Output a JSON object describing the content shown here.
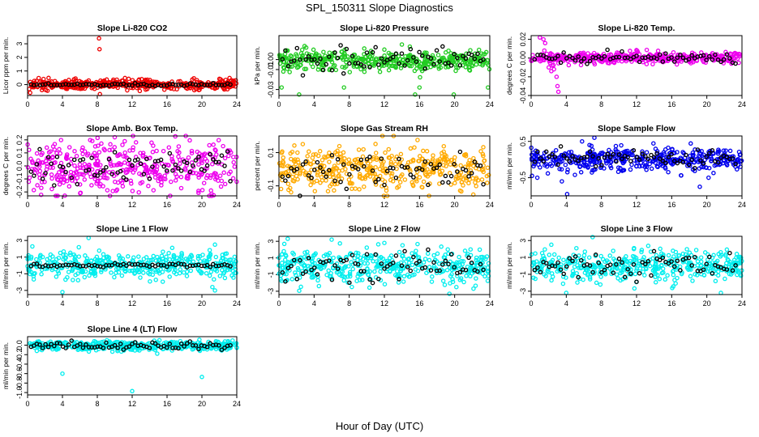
{
  "figure": {
    "title": "SPL_150311  Slope Diagnostics",
    "xlabel": "Hour of Day (UTC)",
    "colors": {
      "reference": "#000000"
    }
  },
  "chart_data": [
    {
      "type": "scatter",
      "title": "Slope Li-820 CO2",
      "ylabel": "Licor ppm per min.",
      "xlim": [
        0,
        24
      ],
      "xticks": [
        0,
        4,
        8,
        12,
        16,
        20,
        24
      ],
      "ylim": [
        -0.8,
        3.6
      ],
      "yticks": [
        {
          "v": 0,
          "t": "0"
        },
        {
          "v": 1,
          "t": "1"
        },
        {
          "v": 2,
          "t": "2"
        },
        {
          "v": 3,
          "t": "3"
        }
      ],
      "color": "#ee0000",
      "series": [
        {
          "name": "all",
          "center": 0.0,
          "spread": 0.18,
          "n": 420
        },
        {
          "name": "outliers",
          "points": [
            [
              8.2,
              3.4
            ],
            [
              8.25,
              2.6
            ],
            [
              8.3,
              -0.7
            ],
            [
              0.3,
              -0.6
            ],
            [
              2.1,
              -0.4
            ],
            [
              22.6,
              -0.35
            ],
            [
              5.5,
              0.45
            ],
            [
              13.1,
              0.4
            ]
          ]
        },
        {
          "name": "reference",
          "center": 0.0,
          "spread": 0.05,
          "n": 70
        }
      ]
    },
    {
      "type": "scatter",
      "title": "Slope Li-820 Pressure",
      "ylabel": "kPa per min.",
      "xlim": [
        0,
        24
      ],
      "xticks": [
        0,
        4,
        8,
        12,
        16,
        20,
        24
      ],
      "ylim": [
        -0.036,
        0.024
      ],
      "yticks": [
        {
          "v": 0,
          "t": "0.00"
        },
        {
          "v": -0.01,
          "t": "-0.01"
        },
        {
          "v": -0.03,
          "t": "-0.03"
        }
      ],
      "color": "#22cc22",
      "series": [
        {
          "name": "all",
          "center": -0.001,
          "spread": 0.005,
          "n": 420
        },
        {
          "name": "outliers",
          "points": [
            [
              0.3,
              -0.028
            ],
            [
              0.5,
              -0.012
            ],
            [
              2.3,
              -0.035
            ],
            [
              7.4,
              -0.028
            ],
            [
              15.5,
              -0.035
            ],
            [
              16.0,
              -0.028
            ],
            [
              19.9,
              -0.035
            ],
            [
              23.8,
              -0.028
            ],
            [
              3.1,
              0.012
            ],
            [
              12.0,
              0.01
            ]
          ]
        },
        {
          "name": "reference",
          "center": 0.001,
          "spread": 0.007,
          "n": 70
        }
      ]
    },
    {
      "type": "scatter",
      "title": "Slope Li-820 Temp.",
      "ylabel": "degrees C per min.",
      "xlim": [
        0,
        24
      ],
      "xticks": [
        0,
        4,
        8,
        12,
        16,
        20,
        24
      ],
      "ylim": [
        -0.04,
        0.024
      ],
      "yticks": [
        {
          "v": 0.02,
          "t": "0.02"
        },
        {
          "v": 0,
          "t": "0.00"
        },
        {
          "v": -0.02,
          "t": "-0.02"
        },
        {
          "v": -0.04,
          "t": "-0.04"
        }
      ],
      "color": "#ee00ee",
      "series": [
        {
          "name": "all",
          "center": 0.0,
          "spread": 0.003,
          "n": 420
        },
        {
          "name": "outliers",
          "points": [
            [
              1.0,
              0.022
            ],
            [
              1.4,
              0.02
            ],
            [
              1.6,
              0.016
            ],
            [
              1.5,
              0.008
            ],
            [
              1.2,
              0.004
            ],
            [
              2.0,
              -0.01
            ],
            [
              2.3,
              -0.014
            ],
            [
              2.6,
              -0.012
            ],
            [
              2.9,
              -0.02
            ],
            [
              3.0,
              -0.03
            ],
            [
              3.1,
              -0.036
            ],
            [
              2.4,
              -0.008
            ]
          ]
        },
        {
          "name": "reference",
          "center": 0.0,
          "spread": 0.003,
          "n": 70
        }
      ]
    },
    {
      "type": "scatter",
      "title": "Slope Amb. Box Temp.",
      "ylabel": "degrees C per min.",
      "xlim": [
        0,
        24
      ],
      "xticks": [
        0,
        4,
        8,
        12,
        16,
        20,
        24
      ],
      "ylim": [
        -0.23,
        0.23
      ],
      "yticks": [
        {
          "v": 0.2,
          "t": "0.2"
        },
        {
          "v": 0.1,
          "t": "0.1"
        },
        {
          "v": 0,
          "t": "0.0"
        },
        {
          "v": -0.1,
          "t": "-0.1"
        },
        {
          "v": -0.2,
          "t": "-0.2"
        }
      ],
      "color": "#ee00ee",
      "series": [
        {
          "name": "all",
          "center": 0.0,
          "spread": 0.1,
          "n": 420
        },
        {
          "name": "outliers",
          "points": []
        },
        {
          "name": "reference",
          "center": 0.0,
          "spread": 0.06,
          "n": 70
        }
      ]
    },
    {
      "type": "scatter",
      "title": "Slope Gas Stream RH",
      "ylabel": "percent per min.",
      "xlim": [
        0,
        24
      ],
      "xticks": [
        0,
        4,
        8,
        12,
        16,
        20,
        24
      ],
      "ylim": [
        -0.16,
        0.2
      ],
      "yticks": [
        {
          "v": 0.1,
          "t": "0.1"
        },
        {
          "v": -0.1,
          "t": "-0.1"
        }
      ],
      "color": "#ffaa00",
      "series": [
        {
          "name": "all",
          "center": 0.0,
          "spread": 0.07,
          "n": 420
        },
        {
          "name": "outliers",
          "points": []
        },
        {
          "name": "reference",
          "center": 0.0,
          "spread": 0.05,
          "n": 70
        }
      ]
    },
    {
      "type": "scatter",
      "title": "Slope Sample Flow",
      "ylabel": "ml/min per min.",
      "xlim": [
        0,
        24
      ],
      "xticks": [
        0,
        4,
        8,
        12,
        16,
        20,
        24
      ],
      "ylim": [
        -1.0,
        0.65
      ],
      "yticks": [
        {
          "v": 0.5,
          "t": "0.5"
        },
        {
          "v": -0.5,
          "t": "-0.5"
        }
      ],
      "color": "#0000ee",
      "series": [
        {
          "name": "all",
          "center": 0.0,
          "spread": 0.15,
          "n": 420
        },
        {
          "name": "outliers",
          "points": [
            [
              4.1,
              -0.95
            ],
            [
              7.2,
              0.6
            ],
            [
              0.1,
              -0.45
            ],
            [
              0.7,
              -0.5
            ],
            [
              3.5,
              -0.6
            ],
            [
              5.8,
              0.5
            ],
            [
              19.2,
              -0.75
            ],
            [
              20.2,
              -0.5
            ]
          ]
        },
        {
          "name": "reference",
          "center": 0.05,
          "spread": 0.12,
          "n": 70
        }
      ]
    },
    {
      "type": "scatter",
      "title": "Slope Line 1 Flow",
      "ylabel": "ml/min per min.",
      "xlim": [
        0,
        24
      ],
      "xticks": [
        0,
        4,
        8,
        12,
        16,
        20,
        24
      ],
      "ylim": [
        -3.5,
        3.5
      ],
      "yticks": [
        {
          "v": 3,
          "t": "3"
        },
        {
          "v": 1,
          "t": "1"
        },
        {
          "v": -1,
          "t": "-1"
        },
        {
          "v": -3,
          "t": "-3"
        }
      ],
      "color": "#00eeee",
      "series": [
        {
          "name": "all",
          "center": 0.0,
          "spread": 0.8,
          "n": 420
        },
        {
          "name": "outliers",
          "points": [
            [
              7.0,
              3.3
            ],
            [
              4.0,
              -3.2
            ],
            [
              21.5,
              -3.0
            ],
            [
              21.2,
              -2.6
            ],
            [
              21.5,
              2.5
            ]
          ]
        },
        {
          "name": "reference",
          "center": 0.0,
          "spread": 0.1,
          "n": 70
        }
      ]
    },
    {
      "type": "scatter",
      "title": "Slope Line 2 Flow",
      "ylabel": "ml/min per min.",
      "xlim": [
        0,
        24
      ],
      "xticks": [
        0,
        4,
        8,
        12,
        16,
        20,
        24
      ],
      "ylim": [
        -3.4,
        3.6
      ],
      "yticks": [
        {
          "v": 3,
          "t": "3"
        },
        {
          "v": 1,
          "t": "1"
        },
        {
          "v": -1,
          "t": "-1"
        },
        {
          "v": -3,
          "t": "-3"
        }
      ],
      "color": "#00eeee",
      "series": [
        {
          "name": "all",
          "center": 0.0,
          "spread": 1.0,
          "n": 420
        },
        {
          "name": "outliers",
          "points": [
            [
              1.0,
              3.3
            ],
            [
              6.0,
              3.2
            ],
            [
              19.4,
              -3.3
            ],
            [
              20.2,
              -2.5
            ],
            [
              12.0,
              2.8
            ]
          ]
        },
        {
          "name": "reference",
          "center": 0.0,
          "spread": 1.0,
          "n": 70
        }
      ]
    },
    {
      "type": "scatter",
      "title": "Slope Line 3 Flow",
      "ylabel": "ml/min per min.",
      "xlim": [
        0,
        24
      ],
      "xticks": [
        0,
        4,
        8,
        12,
        16,
        20,
        24
      ],
      "ylim": [
        -3.4,
        3.5
      ],
      "yticks": [
        {
          "v": 3,
          "t": "3"
        },
        {
          "v": 1,
          "t": "1"
        },
        {
          "v": -1,
          "t": "-1"
        },
        {
          "v": -3,
          "t": "-3"
        }
      ],
      "color": "#00eeee",
      "series": [
        {
          "name": "all",
          "center": 0.0,
          "spread": 0.9,
          "n": 420
        },
        {
          "name": "outliers",
          "points": [
            [
              4.0,
              -3.2
            ],
            [
              7.0,
              3.4
            ],
            [
              21.6,
              -3.2
            ],
            [
              2.3,
              2.5
            ]
          ]
        },
        {
          "name": "reference",
          "center": 0.0,
          "spread": 0.9,
          "n": 70
        }
      ]
    },
    {
      "type": "scatter",
      "title": "Slope Line 4 (LT) Flow",
      "ylabel": "ml/min per min.",
      "xlim": [
        0,
        24
      ],
      "xticks": [
        0,
        4,
        8,
        12,
        16,
        20,
        24
      ],
      "ylim": [
        -1.05,
        0.18
      ],
      "yticks": [
        {
          "v": 0,
          "t": "0.0"
        },
        {
          "v": -0.2,
          "t": "-0.2"
        },
        {
          "v": -0.4,
          "t": "-0.4"
        },
        {
          "v": -0.6,
          "t": "-0.6"
        },
        {
          "v": -0.8,
          "t": "-0.8"
        },
        {
          "v": -1.0,
          "t": "-1.0"
        }
      ],
      "color": "#00eeee",
      "series": [
        {
          "name": "all",
          "center": -0.01,
          "spread": 0.05,
          "n": 420
        },
        {
          "name": "outliers",
          "points": [
            [
              4.0,
              -0.6
            ],
            [
              20.0,
              -0.67
            ],
            [
              12.0,
              -0.97
            ]
          ]
        },
        {
          "name": "reference",
          "center": -0.02,
          "spread": 0.04,
          "n": 70
        }
      ]
    }
  ]
}
